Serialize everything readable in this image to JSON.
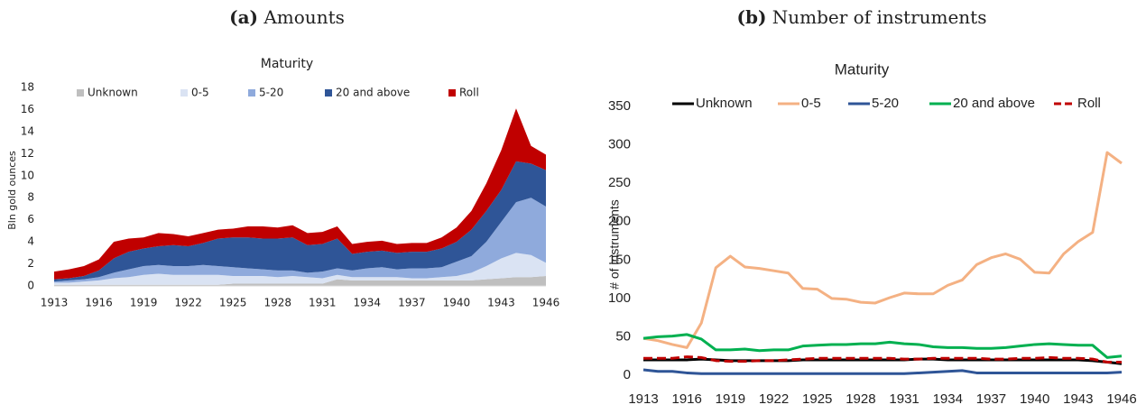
{
  "chart_data": [
    {
      "type": "area",
      "panel_label": "(a)",
      "panel_title": "Amounts",
      "title": "Maturity",
      "ylabel": "Bln gold ounces",
      "x": [
        1913,
        1914,
        1915,
        1916,
        1917,
        1918,
        1919,
        1920,
        1921,
        1922,
        1923,
        1924,
        1925,
        1926,
        1927,
        1928,
        1929,
        1930,
        1931,
        1932,
        1933,
        1934,
        1935,
        1936,
        1937,
        1938,
        1939,
        1940,
        1941,
        1942,
        1943,
        1944,
        1945,
        1946
      ],
      "xlim": [
        1913,
        1946
      ],
      "xticks": [
        1913,
        1916,
        1919,
        1922,
        1925,
        1928,
        1931,
        1934,
        1937,
        1940,
        1943,
        1946
      ],
      "ylim": [
        0,
        18
      ],
      "yticks": [
        0,
        2,
        4,
        6,
        8,
        10,
        12,
        14,
        16,
        18
      ],
      "stacked": true,
      "legend": "top",
      "series": [
        {
          "name": "Unknown",
          "color": "#bfbfbf",
          "values": [
            0.1,
            0.1,
            0.1,
            0.1,
            0.1,
            0.1,
            0.1,
            0.1,
            0.1,
            0.1,
            0.1,
            0.1,
            0.2,
            0.2,
            0.2,
            0.2,
            0.2,
            0.2,
            0.2,
            0.6,
            0.5,
            0.5,
            0.5,
            0.5,
            0.5,
            0.5,
            0.5,
            0.5,
            0.5,
            0.6,
            0.7,
            0.8,
            0.8,
            0.9
          ]
        },
        {
          "name": "0-5",
          "color": "#dae3f3",
          "values": [
            0.2,
            0.2,
            0.3,
            0.4,
            0.6,
            0.7,
            0.9,
            1.0,
            0.9,
            0.9,
            0.9,
            0.9,
            0.7,
            0.7,
            0.7,
            0.6,
            0.7,
            0.6,
            0.5,
            0.4,
            0.3,
            0.3,
            0.3,
            0.3,
            0.2,
            0.2,
            0.3,
            0.4,
            0.7,
            1.2,
            1.8,
            2.2,
            2.0,
            1.2
          ]
        },
        {
          "name": "5-20",
          "color": "#8faadc",
          "values": [
            0.1,
            0.2,
            0.2,
            0.3,
            0.5,
            0.7,
            0.8,
            0.8,
            0.8,
            0.8,
            0.9,
            0.8,
            0.8,
            0.7,
            0.6,
            0.6,
            0.5,
            0.4,
            0.6,
            0.6,
            0.6,
            0.8,
            0.9,
            0.7,
            0.9,
            0.9,
            0.9,
            1.3,
            1.5,
            2.2,
            3.3,
            4.6,
            5.2,
            5.1
          ]
        },
        {
          "name": "20 and above",
          "color": "#2f5597",
          "values": [
            0.2,
            0.2,
            0.3,
            0.6,
            1.3,
            1.6,
            1.6,
            1.7,
            1.9,
            1.8,
            2.0,
            2.5,
            2.7,
            2.8,
            2.8,
            2.9,
            3.0,
            2.5,
            2.5,
            2.7,
            1.5,
            1.5,
            1.5,
            1.5,
            1.5,
            1.5,
            1.7,
            1.8,
            2.4,
            2.8,
            2.9,
            3.7,
            3.1,
            3.3
          ]
        },
        {
          "name": "Roll",
          "color": "#c00000",
          "values": [
            0.7,
            0.8,
            0.9,
            1.0,
            1.5,
            1.2,
            1.0,
            1.2,
            1.0,
            0.9,
            0.9,
            0.8,
            0.8,
            1.0,
            1.1,
            1.0,
            1.1,
            1.1,
            1.1,
            1.1,
            0.9,
            0.9,
            0.9,
            0.8,
            0.8,
            0.8,
            1.0,
            1.3,
            1.7,
            2.5,
            3.6,
            4.8,
            1.6,
            1.4
          ]
        }
      ]
    },
    {
      "type": "line",
      "panel_label": "(b)",
      "panel_title": "Number of instruments",
      "title": "Maturity",
      "ylabel": "# of instruments",
      "x": [
        1913,
        1914,
        1915,
        1916,
        1917,
        1918,
        1919,
        1920,
        1921,
        1922,
        1923,
        1924,
        1925,
        1926,
        1927,
        1928,
        1929,
        1930,
        1931,
        1932,
        1933,
        1934,
        1935,
        1936,
        1937,
        1938,
        1939,
        1940,
        1941,
        1942,
        1943,
        1944,
        1945,
        1946
      ],
      "xlim": [
        1913,
        1946
      ],
      "xticks": [
        1913,
        1916,
        1919,
        1922,
        1925,
        1928,
        1931,
        1934,
        1937,
        1940,
        1943,
        1946
      ],
      "ylim": [
        0,
        350
      ],
      "yticks": [
        0,
        50,
        100,
        150,
        200,
        250,
        300,
        350
      ],
      "legend": "top",
      "series": [
        {
          "name": "Unknown",
          "color": "#000000",
          "values": [
            20,
            20,
            20,
            20,
            21,
            20,
            19,
            19,
            19,
            19,
            19,
            20,
            20,
            20,
            20,
            20,
            20,
            20,
            20,
            21,
            21,
            20,
            20,
            20,
            20,
            20,
            20,
            20,
            20,
            20,
            20,
            19,
            17,
            15
          ]
        },
        {
          "name": "0-5",
          "color": "#f4b183",
          "values": [
            48,
            45,
            40,
            36,
            68,
            140,
            155,
            141,
            139,
            136,
            133,
            113,
            112,
            100,
            99,
            95,
            94,
            101,
            107,
            106,
            106,
            117,
            124,
            144,
            153,
            158,
            151,
            134,
            133,
            158,
            174,
            186,
            290,
            276
          ]
        },
        {
          "name": "5-20",
          "color": "#2f5597",
          "values": [
            7,
            5,
            5,
            3,
            2,
            2,
            2,
            2,
            2,
            2,
            2,
            2,
            2,
            2,
            2,
            2,
            2,
            2,
            2,
            3,
            4,
            5,
            6,
            3,
            3,
            3,
            3,
            3,
            3,
            3,
            3,
            3,
            3,
            4
          ]
        },
        {
          "name": "20 and above",
          "color": "#00b050",
          "values": [
            48,
            50,
            51,
            53,
            47,
            33,
            33,
            34,
            32,
            33,
            33,
            38,
            39,
            40,
            40,
            41,
            41,
            43,
            41,
            40,
            37,
            36,
            36,
            35,
            35,
            36,
            38,
            40,
            41,
            40,
            39,
            39,
            23,
            25
          ]
        },
        {
          "name": "Roll",
          "color": "#c00000",
          "dashed": true,
          "values": [
            22,
            22,
            22,
            24,
            23,
            19,
            18,
            18,
            19,
            19,
            20,
            21,
            22,
            22,
            22,
            22,
            22,
            22,
            21,
            21,
            22,
            22,
            22,
            22,
            21,
            21,
            22,
            22,
            23,
            22,
            22,
            21,
            17,
            17
          ]
        }
      ]
    }
  ]
}
